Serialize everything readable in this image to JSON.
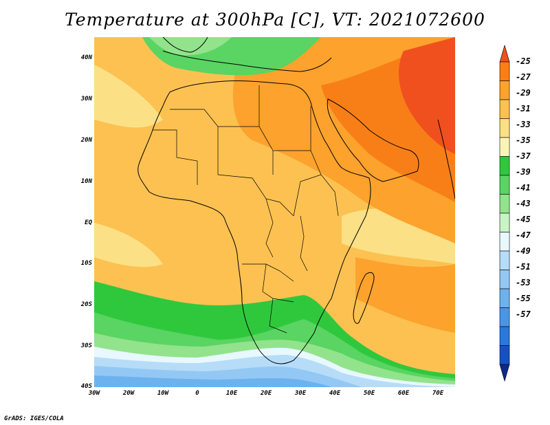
{
  "title": "Temperature at 300hPa [C], VT: 2021072600",
  "footer": "GrADS: IGES/COLA",
  "map": {
    "region": "Africa",
    "lon_range": [
      -30,
      75
    ],
    "lat_range": [
      -40,
      45
    ],
    "lat_labels": [
      "40N",
      "30N",
      "20N",
      "10N",
      "EQ",
      "10S",
      "20S",
      "30S",
      "40S"
    ],
    "lon_labels": [
      "30W",
      "20W",
      "10W",
      "0",
      "10E",
      "20E",
      "30E",
      "40E",
      "50E",
      "60E",
      "70E"
    ]
  },
  "colorbar": {
    "levels": [
      "-25",
      "-27",
      "-29",
      "-31",
      "-33",
      "-35",
      "-37",
      "-39",
      "-41",
      "-43",
      "-45",
      "-47",
      "-49",
      "-51",
      "-53",
      "-55",
      "-57"
    ],
    "colors": [
      "#f0501e",
      "#f87f17",
      "#fca22d",
      "#fcc151",
      "#fce085",
      "#fbf5b5",
      "#2fc83d",
      "#5ad462",
      "#92e38c",
      "#c8f5c3",
      "#e8f8ff",
      "#b6dcf8",
      "#94c8f4",
      "#6cb2ee",
      "#4a96e6",
      "#2a78da",
      "#1452c4",
      "#0d2a8a"
    ]
  }
}
